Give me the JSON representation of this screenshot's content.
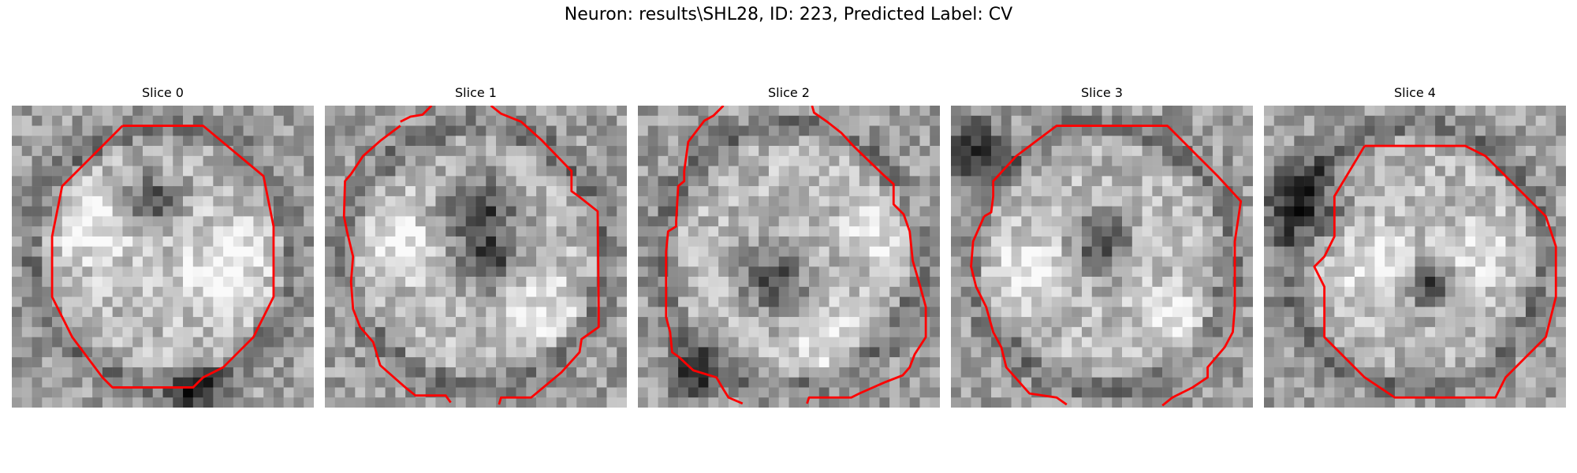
{
  "figure": {
    "title": "Neuron: results\\SHL28, ID: 223, Predicted Label: CV"
  },
  "panels": [
    {
      "title": "Slice 0",
      "seed": 11,
      "dark_blobs": [
        [
          0.47,
          0.32,
          0.09
        ],
        [
          0.62,
          0.95,
          0.08
        ]
      ],
      "bright_blobs": [
        [
          0.27,
          0.4,
          0.14
        ],
        [
          0.7,
          0.55,
          0.16
        ]
      ]
    },
    {
      "title": "Slice 1",
      "seed": 23,
      "dark_blobs": [
        [
          0.52,
          0.35,
          0.12
        ],
        [
          0.54,
          0.52,
          0.09
        ]
      ],
      "bright_blobs": [
        [
          0.72,
          0.68,
          0.13
        ],
        [
          0.23,
          0.45,
          0.12
        ]
      ]
    },
    {
      "title": "Slice 2",
      "seed": 37,
      "dark_blobs": [
        [
          0.45,
          0.58,
          0.1
        ],
        [
          0.18,
          0.9,
          0.08
        ]
      ],
      "bright_blobs": [
        [
          0.82,
          0.4,
          0.12
        ],
        [
          0.62,
          0.78,
          0.1
        ]
      ]
    },
    {
      "title": "Slice 3",
      "seed": 41,
      "dark_blobs": [
        [
          0.5,
          0.45,
          0.09
        ],
        [
          0.08,
          0.15,
          0.1
        ]
      ],
      "bright_blobs": [
        [
          0.25,
          0.55,
          0.13
        ],
        [
          0.75,
          0.72,
          0.12
        ]
      ]
    },
    {
      "title": "Slice 4",
      "seed": 53,
      "dark_blobs": [
        [
          0.14,
          0.33,
          0.13
        ],
        [
          0.55,
          0.6,
          0.07
        ]
      ],
      "bright_blobs": [
        [
          0.35,
          0.52,
          0.12
        ],
        [
          0.72,
          0.48,
          0.1
        ]
      ]
    }
  ],
  "contour_color": "#ff0000",
  "colormap": "gray"
}
